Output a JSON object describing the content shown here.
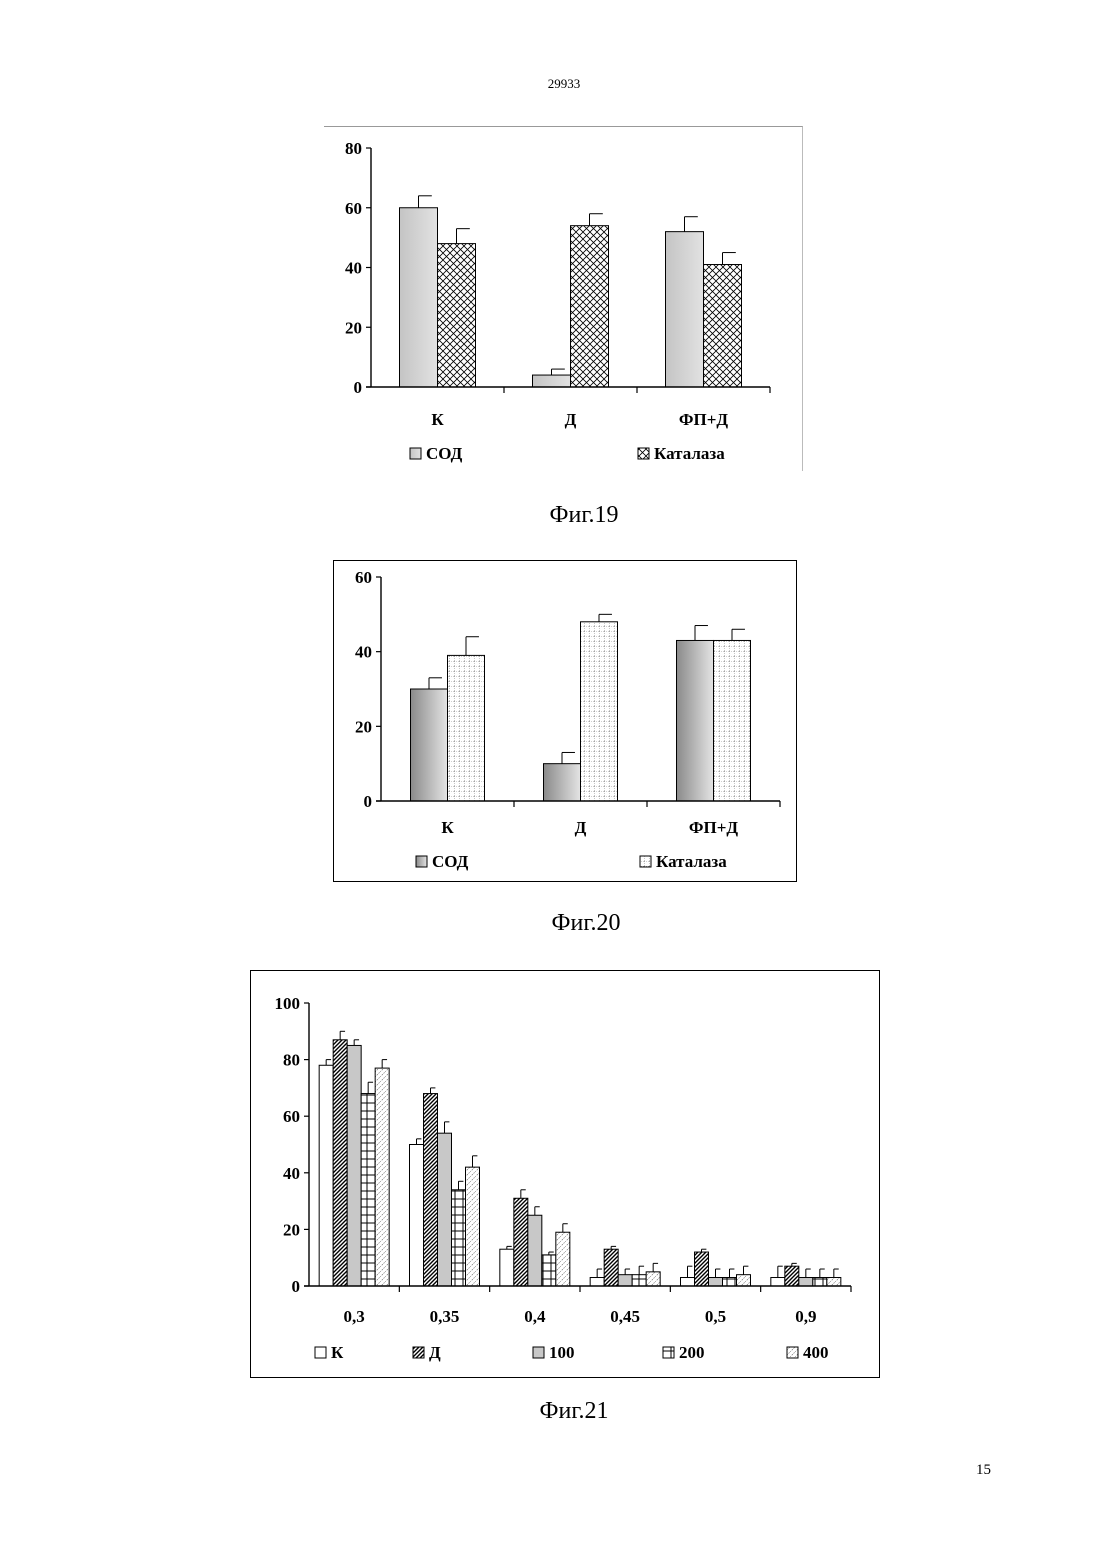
{
  "page": {
    "document_number": "29933",
    "page_number": "15"
  },
  "colors": {
    "sod_light": "#d0d0d0",
    "sod_dark": "#8a8a8a",
    "catalase": "#ffffff",
    "grey_100": "#c8c8c8"
  },
  "chart_data": [
    {
      "id": "fig19",
      "caption": "Фиг.19",
      "type": "bar",
      "categories": [
        "К",
        "Д",
        "ФП+Д"
      ],
      "ylim": [
        0,
        80
      ],
      "yticks": [
        0,
        20,
        40,
        60,
        80
      ],
      "grid": false,
      "legend_position": "bottom",
      "series": [
        {
          "name": "СОД",
          "values": [
            60,
            4,
            52
          ],
          "errors": [
            4,
            2,
            5
          ],
          "pattern": "solid-light"
        },
        {
          "name": "Каталаза",
          "values": [
            48,
            54,
            41
          ],
          "errors": [
            5,
            4,
            4
          ],
          "pattern": "crosshatch"
        }
      ]
    },
    {
      "id": "fig20",
      "caption": "Фиг.20",
      "type": "bar",
      "categories": [
        "К",
        "Д",
        "ФП+Д"
      ],
      "ylim": [
        0,
        60
      ],
      "yticks": [
        0,
        20,
        40,
        60
      ],
      "grid": false,
      "legend_position": "bottom",
      "series": [
        {
          "name": "СОД",
          "values": [
            30,
            10,
            43
          ],
          "errors": [
            3,
            3,
            4
          ],
          "pattern": "gradient-dark"
        },
        {
          "name": "Каталаза",
          "values": [
            39,
            48,
            43
          ],
          "errors": [
            5,
            2,
            3
          ],
          "pattern": "grid"
        }
      ]
    },
    {
      "id": "fig21",
      "caption": "Фиг.21",
      "type": "bar",
      "categories": [
        "0,3",
        "0,35",
        "0,4",
        "0,45",
        "0,5",
        "0,9"
      ],
      "ylim": [
        0,
        100
      ],
      "yticks": [
        0,
        20,
        40,
        60,
        80,
        100
      ],
      "grid": false,
      "legend_position": "bottom",
      "series": [
        {
          "name": "К",
          "values": [
            78,
            50,
            13,
            3,
            3,
            3
          ],
          "errors": [
            2,
            2,
            1,
            3,
            4,
            4
          ],
          "pattern": "white"
        },
        {
          "name": "Д",
          "values": [
            87,
            68,
            31,
            13,
            12,
            7
          ],
          "errors": [
            3,
            2,
            3,
            1,
            1,
            1
          ],
          "pattern": "hatch-dense"
        },
        {
          "name": "100",
          "values": [
            85,
            54,
            25,
            4,
            3,
            3
          ],
          "errors": [
            2,
            4,
            3,
            2,
            3,
            3
          ],
          "pattern": "grey"
        },
        {
          "name": "200",
          "values": [
            68,
            34,
            11,
            4,
            3,
            3
          ],
          "errors": [
            4,
            3,
            1,
            3,
            3,
            3
          ],
          "pattern": "grid"
        },
        {
          "name": "400",
          "values": [
            77,
            42,
            19,
            5,
            4,
            3
          ],
          "errors": [
            3,
            4,
            3,
            3,
            3,
            3
          ],
          "pattern": "hatch-light"
        }
      ]
    }
  ]
}
